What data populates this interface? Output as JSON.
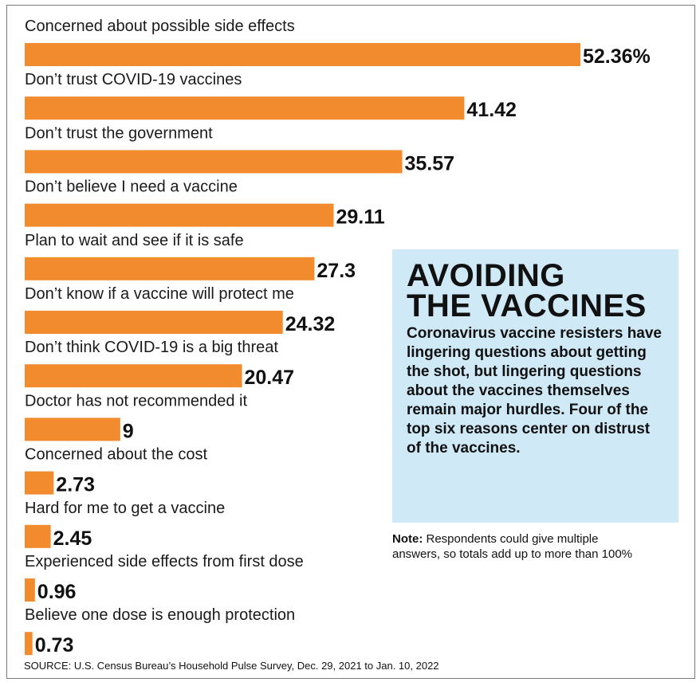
{
  "chart_data": {
    "type": "bar",
    "orientation": "horizontal",
    "categories": [
      "Concerned about possible side effects",
      "Don’t trust COVID-19 vaccines",
      "Don’t trust the government",
      "Don’t believe I need a vaccine",
      "Plan to wait and see if it is safe",
      "Don’t know if a vaccine will protect me",
      "Don’t think COVID-19 is a big threat",
      "Doctor has not recommended it",
      "Concerned about the cost",
      "Hard for me to get a vaccine",
      "Experienced side effects from first dose",
      "Believe one dose is enough protection"
    ],
    "values": [
      52.36,
      41.42,
      35.57,
      29.11,
      27.3,
      24.32,
      20.47,
      9,
      2.73,
      2.45,
      0.96,
      0.73
    ],
    "value_labels": [
      "52.36%",
      "41.42",
      "35.57",
      "29.11",
      "27.3",
      "24.32",
      "20.47",
      "9",
      "2.73",
      "2.45",
      "0.96",
      "0.73"
    ],
    "bar_color": "#f28a2e",
    "xlim": [
      0,
      52.36
    ],
    "grid": false,
    "legend": false
  },
  "headline": {
    "line1": "AVOIDING",
    "line2": "THE VACCINES"
  },
  "dek": "Coronavirus vaccine resisters have lingering questions about getting the shot, but lingering questions about the vaccines themselves remain major hurdles. Four of the top six reasons center on distrust of the vaccines.",
  "note": {
    "label": "Note:",
    "text": " Respondents could give multiple answers, so totals add up to more than 100%"
  },
  "source": "SOURCE: U.S. Census Bureau’s Household Pulse Survey, Dec. 29, 2021 to Jan. 10, 2022",
  "colors": {
    "info_box_bg": "#cfe9f7",
    "text": "#111111"
  }
}
